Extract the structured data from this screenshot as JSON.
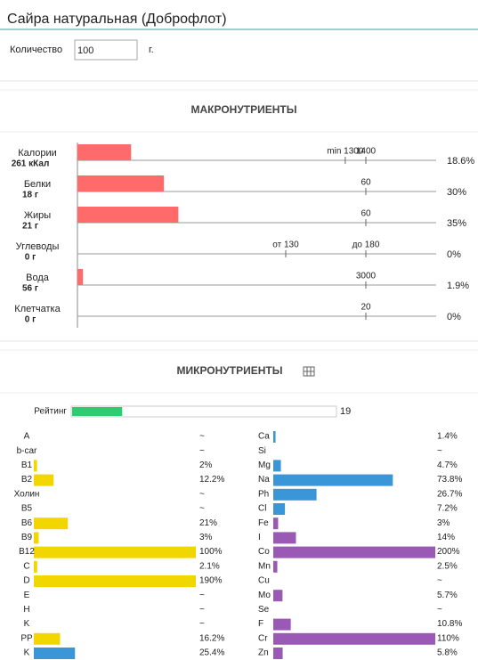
{
  "header": {
    "title": "Сайра натуральная (Доброфлот)"
  },
  "quantity": {
    "label": "Количество",
    "value": "100",
    "unit": "г."
  },
  "macro": {
    "title": "МАКРОНУТРИЕНТЫ",
    "color": "#ff6b6b",
    "rows": [
      {
        "name": "Калории",
        "amount": "261 кКал",
        "percent": 18.6,
        "percent_label": "18.6%",
        "markers": [
          {
            "value": 1300,
            "label": "min 1300"
          },
          {
            "value": 1400,
            "label": "1400"
          }
        ]
      },
      {
        "name": "Белки",
        "amount": "18 г",
        "percent": 30,
        "percent_label": "30%",
        "markers": [
          {
            "value": 60,
            "label": "60"
          }
        ]
      },
      {
        "name": "Жиры",
        "amount": "21 г",
        "percent": 35,
        "percent_label": "35%",
        "markers": [
          {
            "value": 60,
            "label": "60"
          }
        ]
      },
      {
        "name": "Углеводы",
        "amount": "0 г",
        "percent": 0,
        "percent_label": "0%",
        "markers": [
          {
            "value": 130,
            "label": "от 130"
          },
          {
            "value": 180,
            "label": "до 180"
          }
        ]
      },
      {
        "name": "Вода",
        "amount": "56 г",
        "percent": 1.9,
        "percent_label": "1.9%",
        "markers": [
          {
            "value": 3000,
            "label": "3000"
          }
        ]
      },
      {
        "name": "Клетчатка",
        "amount": "0 г",
        "percent": 0,
        "percent_label": "0%",
        "markers": [
          {
            "value": 20,
            "label": "20"
          }
        ]
      }
    ]
  },
  "micro": {
    "title": "МИКРОНУТРИЕНТЫ",
    "rating": {
      "label": "Рейтинг",
      "value": 19,
      "color": "#2ecc71"
    },
    "left": [
      {
        "name": "A",
        "value": null,
        "label": "~"
      },
      {
        "name": "b-car",
        "value": null,
        "label": "~"
      },
      {
        "name": "B1",
        "value": 2,
        "label": "2%",
        "color": "#f2d600"
      },
      {
        "name": "B2",
        "value": 12.2,
        "label": "12.2%",
        "color": "#f2d600"
      },
      {
        "name": "Холин",
        "value": null,
        "label": "~"
      },
      {
        "name": "B5",
        "value": null,
        "label": "~"
      },
      {
        "name": "B6",
        "value": 21,
        "label": "21%",
        "color": "#f2d600"
      },
      {
        "name": "B9",
        "value": 3,
        "label": "3%",
        "color": "#f2d600"
      },
      {
        "name": "B12",
        "value": 100,
        "label": "100%",
        "color": "#f2d600"
      },
      {
        "name": "C",
        "value": 2.1,
        "label": "2.1%",
        "color": "#f2d600"
      },
      {
        "name": "D",
        "value": 190,
        "label": "190%",
        "color": "#f2d600"
      },
      {
        "name": "E",
        "value": null,
        "label": "~"
      },
      {
        "name": "H",
        "value": null,
        "label": "~"
      },
      {
        "name": "K",
        "value": null,
        "label": "~"
      },
      {
        "name": "PP",
        "value": 16.2,
        "label": "16.2%",
        "color": "#f2d600"
      },
      {
        "name": "K",
        "value": 25.4,
        "label": "25.4%",
        "color": "#3a96d6"
      }
    ],
    "right": [
      {
        "name": "Ca",
        "value": 1.4,
        "label": "1.4%",
        "color": "#3a96d6"
      },
      {
        "name": "Si",
        "value": null,
        "label": "~"
      },
      {
        "name": "Mg",
        "value": 4.7,
        "label": "4.7%",
        "color": "#3a96d6"
      },
      {
        "name": "Na",
        "value": 73.8,
        "label": "73.8%",
        "color": "#3a96d6"
      },
      {
        "name": "Ph",
        "value": 26.7,
        "label": "26.7%",
        "color": "#3a96d6"
      },
      {
        "name": "Cl",
        "value": 7.2,
        "label": "7.2%",
        "color": "#3a96d6"
      },
      {
        "name": "Fe",
        "value": 3,
        "label": "3%",
        "color": "#9b59b6"
      },
      {
        "name": "I",
        "value": 14,
        "label": "14%",
        "color": "#9b59b6"
      },
      {
        "name": "Co",
        "value": 200,
        "label": "200%",
        "color": "#9b59b6"
      },
      {
        "name": "Mn",
        "value": 2.5,
        "label": "2.5%",
        "color": "#9b59b6"
      },
      {
        "name": "Cu",
        "value": null,
        "label": "~"
      },
      {
        "name": "Mo",
        "value": 5.7,
        "label": "5.7%",
        "color": "#9b59b6"
      },
      {
        "name": "Se",
        "value": null,
        "label": "~"
      },
      {
        "name": "F",
        "value": 10.8,
        "label": "10.8%",
        "color": "#9b59b6"
      },
      {
        "name": "Cr",
        "value": 110,
        "label": "110%",
        "color": "#9b59b6"
      },
      {
        "name": "Zn",
        "value": 5.8,
        "label": "5.8%",
        "color": "#9b59b6"
      }
    ]
  }
}
